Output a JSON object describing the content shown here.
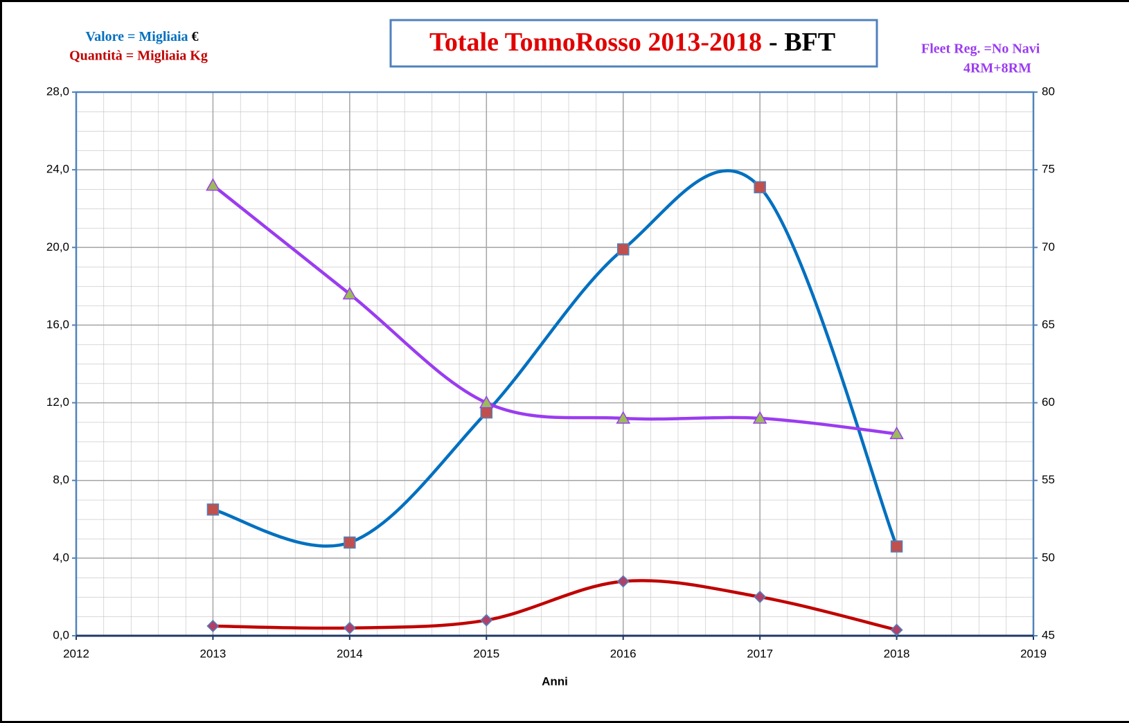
{
  "chart_data": {
    "type": "line",
    "title": "Totale TonnoRosso 2013-2018",
    "title_suffix": "- BFT",
    "annotations": [
      "Valore = Migliaia",
      "€",
      "Quantità = Migliaia Kg",
      "Fleet Reg. =No Navi",
      "4RM+8RM"
    ],
    "x_label": "Anni",
    "x": [
      2013,
      2014,
      2015,
      2016,
      2017,
      2018
    ],
    "series": [
      {
        "color": "#0070c0",
        "marker": "square",
        "marker_color": "#c0504d",
        "values": [
          6.5,
          4.8,
          11.5,
          19.9,
          23.1,
          4.6
        ]
      },
      {
        "color": "#c00000",
        "marker": "diamond",
        "marker_color": "#b0406a",
        "values": [
          0.5,
          0.4,
          0.8,
          2.8,
          2.0,
          0.3
        ]
      },
      {
        "color": "#9b3cf0",
        "marker": "triangle",
        "marker_color": "#9bbb59",
        "axis": "y2",
        "values": [
          74,
          67,
          60,
          59,
          59,
          58
        ]
      }
    ],
    "xlim": [
      2012,
      2019
    ],
    "xticks": [
      2012,
      2013,
      2014,
      2015,
      2016,
      2017,
      2018,
      2019
    ],
    "ylim": [
      0,
      28
    ],
    "yticks": [
      {
        "value": 0,
        "label": "0,0"
      },
      {
        "value": 4,
        "label": "4,0"
      },
      {
        "value": 8,
        "label": "8,0"
      },
      {
        "value": 12,
        "label": "12,0"
      },
      {
        "value": 16,
        "label": "16,0"
      },
      {
        "value": 20,
        "label": "20,0"
      },
      {
        "value": 24,
        "label": "24,0"
      },
      {
        "value": 28,
        "label": "28,0"
      }
    ],
    "y2lim": [
      45,
      80
    ],
    "y2ticks": [
      45,
      50,
      55,
      60,
      65,
      70,
      75,
      80
    ],
    "grid": true
  }
}
